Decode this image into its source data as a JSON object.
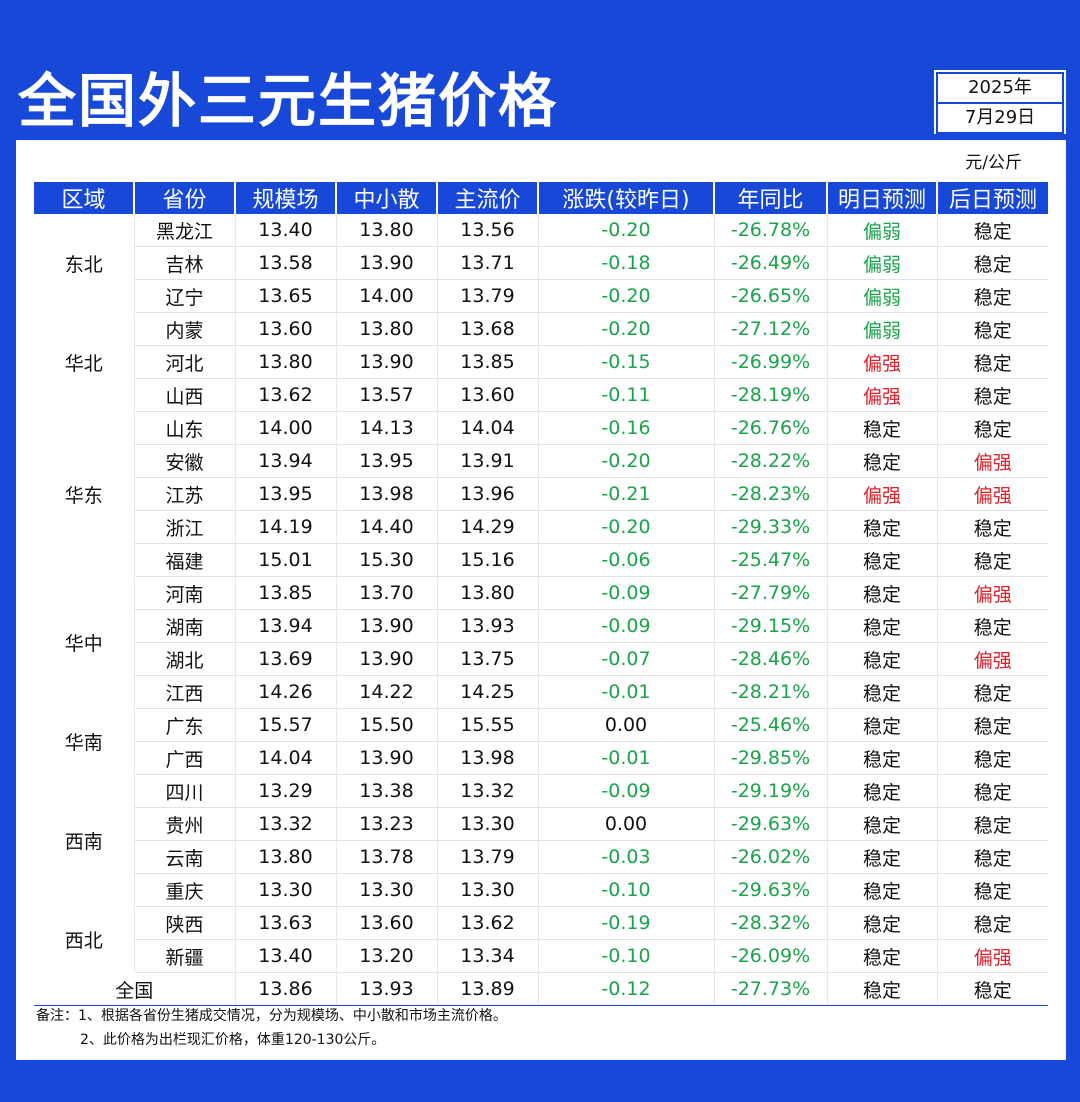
{
  "title": "全国外三元生猪价格",
  "date": {
    "year": "2025年",
    "day": "7月29日"
  },
  "unit": "元/公斤",
  "headers": [
    "区域",
    "省份",
    "规模场",
    "中小散",
    "主流价",
    "涨跌(较昨日)",
    "年同比",
    "明日预测",
    "后日预测"
  ],
  "groups": [
    {
      "region": "东北",
      "rows": [
        [
          "黑龙江",
          "13.40",
          "13.80",
          "13.56",
          "-0.20",
          "-26.78%",
          "偏弱",
          "稳定"
        ],
        [
          "吉林",
          "13.58",
          "13.90",
          "13.71",
          "-0.18",
          "-26.49%",
          "偏弱",
          "稳定"
        ],
        [
          "辽宁",
          "13.65",
          "14.00",
          "13.79",
          "-0.20",
          "-26.65%",
          "偏弱",
          "稳定"
        ]
      ]
    },
    {
      "region": "华北",
      "rows": [
        [
          "内蒙",
          "13.60",
          "13.80",
          "13.68",
          "-0.20",
          "-27.12%",
          "偏弱",
          "稳定"
        ],
        [
          "河北",
          "13.80",
          "13.90",
          "13.85",
          "-0.15",
          "-26.99%",
          "偏强",
          "稳定"
        ],
        [
          "山西",
          "13.62",
          "13.57",
          "13.60",
          "-0.11",
          "-28.19%",
          "偏强",
          "稳定"
        ]
      ]
    },
    {
      "region": "华东",
      "rows": [
        [
          "山东",
          "14.00",
          "14.13",
          "14.04",
          "-0.16",
          "-26.76%",
          "稳定",
          "稳定"
        ],
        [
          "安徽",
          "13.94",
          "13.95",
          "13.91",
          "-0.20",
          "-28.22%",
          "稳定",
          "偏强"
        ],
        [
          "江苏",
          "13.95",
          "13.98",
          "13.96",
          "-0.21",
          "-28.23%",
          "偏强",
          "偏强"
        ],
        [
          "浙江",
          "14.19",
          "14.40",
          "14.29",
          "-0.20",
          "-29.33%",
          "稳定",
          "稳定"
        ],
        [
          "福建",
          "15.01",
          "15.30",
          "15.16",
          "-0.06",
          "-25.47%",
          "稳定",
          "稳定"
        ]
      ]
    },
    {
      "region": "华中",
      "rows": [
        [
          "河南",
          "13.85",
          "13.70",
          "13.80",
          "-0.09",
          "-27.79%",
          "稳定",
          "偏强"
        ],
        [
          "湖南",
          "13.94",
          "13.90",
          "13.93",
          "-0.09",
          "-29.15%",
          "稳定",
          "稳定"
        ],
        [
          "湖北",
          "13.69",
          "13.90",
          "13.75",
          "-0.07",
          "-28.46%",
          "稳定",
          "偏强"
        ],
        [
          "江西",
          "14.26",
          "14.22",
          "14.25",
          "-0.01",
          "-28.21%",
          "稳定",
          "稳定"
        ]
      ]
    },
    {
      "region": "华南",
      "rows": [
        [
          "广东",
          "15.57",
          "15.50",
          "15.55",
          "0.00",
          "-25.46%",
          "稳定",
          "稳定"
        ],
        [
          "广西",
          "14.04",
          "13.90",
          "13.98",
          "-0.01",
          "-29.85%",
          "稳定",
          "稳定"
        ]
      ]
    },
    {
      "region": "西南",
      "rows": [
        [
          "四川",
          "13.29",
          "13.38",
          "13.32",
          "-0.09",
          "-29.19%",
          "稳定",
          "稳定"
        ],
        [
          "贵州",
          "13.32",
          "13.23",
          "13.30",
          "0.00",
          "-29.63%",
          "稳定",
          "稳定"
        ],
        [
          "云南",
          "13.80",
          "13.78",
          "13.79",
          "-0.03",
          "-26.02%",
          "稳定",
          "稳定"
        ],
        [
          "重庆",
          "13.30",
          "13.30",
          "13.30",
          "-0.10",
          "-29.63%",
          "稳定",
          "稳定"
        ]
      ]
    },
    {
      "region": "西北",
      "rows": [
        [
          "陕西",
          "13.63",
          "13.60",
          "13.62",
          "-0.19",
          "-28.32%",
          "稳定",
          "稳定"
        ],
        [
          "新疆",
          "13.40",
          "13.20",
          "13.34",
          "-0.10",
          "-26.09%",
          "稳定",
          "偏强"
        ]
      ]
    }
  ],
  "national": [
    "全国",
    "13.86",
    "13.93",
    "13.89",
    "-0.12",
    "-27.73%",
    "稳定",
    "稳定"
  ],
  "notes": [
    "备注：1、根据各省份生猪成交情况，分为规模场、中小散和市场主流价格。",
    "2、此价格为出栏现汇价格，体重120-130公斤。"
  ],
  "colors": {
    "brand": "#1848d8",
    "up": "#e0202a",
    "down": "#1aa34a"
  }
}
